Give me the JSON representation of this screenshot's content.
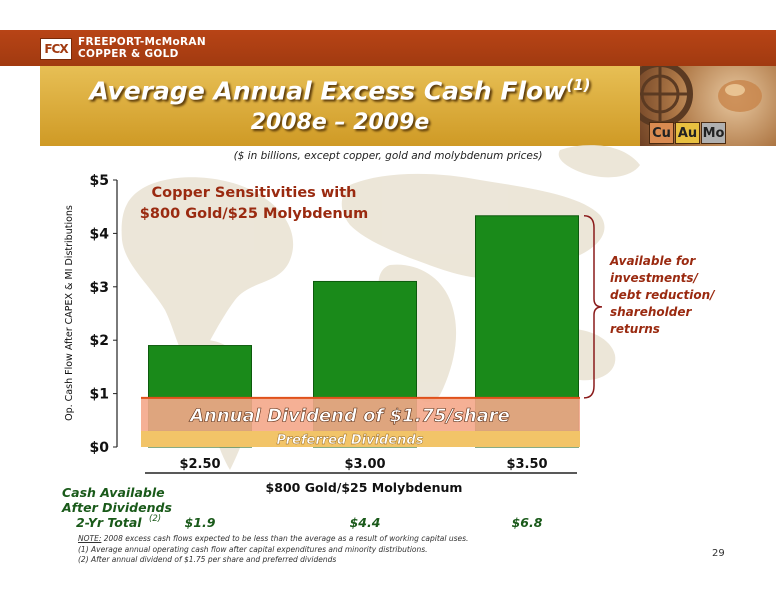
{
  "header": {
    "company_line1": "FREEPORT-McMoRAN",
    "company_line2": "COPPER & GOLD",
    "logo_text": "FCX",
    "title_line1": "Average Annual Excess Cash Flow",
    "title_sup": "(1)",
    "title_line2": "2008e – 2009e",
    "subtitle": "($ in billions, except copper, gold and molybdenum prices)",
    "elements": [
      "Cu",
      "Au",
      "Mo"
    ]
  },
  "chart_data": {
    "type": "bar",
    "categories": [
      "$2.50",
      "$3.00",
      "$3.50"
    ],
    "values": [
      1.9,
      3.1,
      4.33
    ],
    "ylim": [
      0,
      5
    ],
    "yticks": [
      "$0",
      "$1",
      "$2",
      "$3",
      "$4",
      "$5"
    ],
    "ytick_values": [
      0,
      1,
      2,
      3,
      4,
      5
    ],
    "ylabel": "Op. Cash Flow After CAPEX & MI Distributions",
    "xlabel": "$800 Gold/$25 Molybdenum",
    "chart_title_line1": "Copper Sensitivities with",
    "chart_title_line2": "$800 Gold/$25 Molybdenum",
    "dividend_band": {
      "label": "Annual Dividend of $1.75/share",
      "from": 0.3,
      "to": 0.92
    },
    "preferred_band": {
      "label": "Preferred Dividends",
      "from": 0,
      "to": 0.3
    },
    "bracket_label": [
      "Available for",
      "investments/",
      "debt reduction/",
      "shareholder",
      "returns"
    ],
    "colors": {
      "bar": "#1a8a1a",
      "dividend": "#f4a78a",
      "preferred": "#f2c468",
      "dividend_line": "#e0501a"
    }
  },
  "totals": {
    "label_line1": "Cash Available",
    "label_line2": "After Dividends",
    "label_line3": "2-Yr Total",
    "label_sup": "(2)",
    "values": [
      "$1.9",
      "$4.4",
      "$6.8"
    ]
  },
  "notes": {
    "note_prefix": "NOTE:",
    "note_text": " 2008 excess cash flows expected to be less than the average as a result of working capital uses.",
    "fn1": "(1) Average annual operating cash flow after capital expenditures and minority distributions.",
    "fn2": "(2) After annual dividend of $1.75 per share and preferred dividends"
  },
  "page_number": "29"
}
